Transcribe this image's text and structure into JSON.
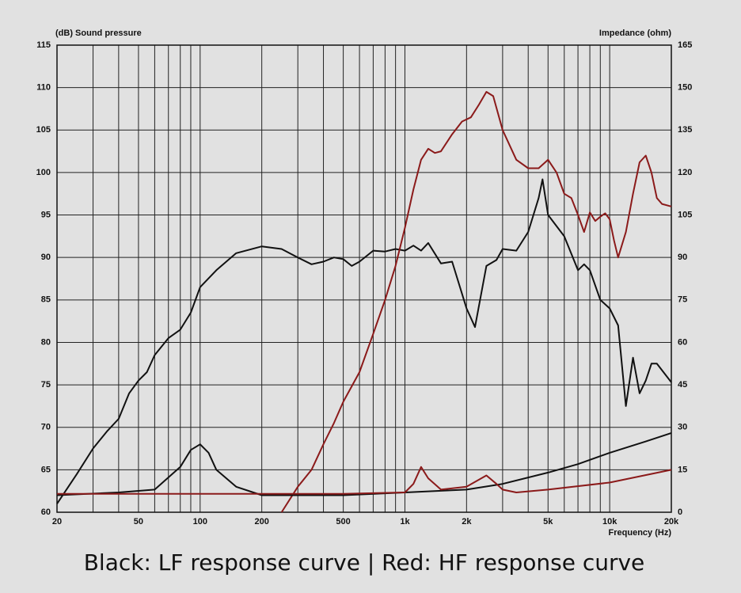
{
  "chart_data": {
    "type": "line",
    "y_label": "(dB) Sound pressure",
    "y2_label": "Impedance  (ohm)",
    "x_label": "Frequency  (Hz)",
    "caption": "Black: LF response curve | Red: HF response curve",
    "xscale": "log",
    "grid": true,
    "xlim": [
      20,
      20000
    ],
    "xticks": [
      20,
      50,
      100,
      200,
      500,
      {
        "value": 1000,
        "label": "1k"
      },
      {
        "value": 2000,
        "label": "2k"
      },
      {
        "value": 5000,
        "label": "5k"
      },
      {
        "value": 10000,
        "label": "10k"
      },
      {
        "value": 20000,
        "label": "20k"
      }
    ],
    "xgrid": [
      20,
      30,
      40,
      50,
      60,
      70,
      80,
      90,
      100,
      200,
      300,
      400,
      500,
      600,
      700,
      800,
      900,
      1000,
      2000,
      3000,
      4000,
      5000,
      6000,
      7000,
      8000,
      9000,
      10000,
      20000
    ],
    "ylim": [
      60,
      115
    ],
    "yticks": [
      60,
      65,
      70,
      75,
      80,
      85,
      90,
      95,
      100,
      105,
      110,
      115
    ],
    "y2lim": [
      0,
      165
    ],
    "y2ticks": [
      0,
      15,
      30,
      45,
      60,
      75,
      90,
      105,
      120,
      135,
      150,
      165
    ],
    "series": [
      {
        "color": "#111111",
        "x": [
          20,
          25,
          30,
          35,
          40,
          45,
          50,
          55,
          60,
          70,
          80,
          90,
          100,
          120,
          150,
          200,
          250,
          300,
          350,
          400,
          450,
          500,
          550,
          600,
          700,
          800,
          900,
          1000,
          1100,
          1200,
          1300,
          1500,
          1700,
          2000,
          2200,
          2500,
          2800,
          3000,
          3500,
          4000,
          4500,
          4700,
          5000,
          6000,
          7000,
          7500,
          8000,
          9000,
          10000,
          11000,
          12000,
          13000,
          14000,
          15000,
          16000,
          17000,
          20000
        ],
        "values": [
          61,
          64.5,
          67.5,
          69.5,
          71,
          74,
          75.5,
          76.5,
          78.5,
          80.5,
          81.5,
          83.5,
          86.5,
          88.5,
          90.5,
          91.3,
          91,
          90,
          89.2,
          89.5,
          90,
          89.8,
          89,
          89.5,
          90.8,
          90.7,
          91,
          90.8,
          91.4,
          90.8,
          91.7,
          89.3,
          89.5,
          84,
          81.8,
          89,
          89.7,
          91,
          90.8,
          93,
          97,
          99.2,
          95,
          92.5,
          88.5,
          89.2,
          88.5,
          85,
          84,
          82,
          72.5,
          78.2,
          74,
          75.5,
          77.5,
          77.5,
          75.3
        ]
      },
      {
        "color": "#8b1a1a",
        "x": [
          250,
          300,
          350,
          400,
          450,
          500,
          600,
          700,
          800,
          900,
          1000,
          1100,
          1200,
          1300,
          1400,
          1500,
          1700,
          1900,
          2100,
          2300,
          2500,
          2700,
          3000,
          3500,
          4000,
          4500,
          5000,
          5500,
          6000,
          6500,
          7000,
          7500,
          8000,
          8500,
          9000,
          9500,
          10000,
          10500,
          11000,
          12000,
          13000,
          14000,
          15000,
          16000,
          17000,
          18000,
          20000
        ],
        "values": [
          60,
          63,
          65,
          68,
          70.5,
          73,
          76.5,
          81,
          85,
          89,
          93.5,
          98,
          101.5,
          102.8,
          102.3,
          102.5,
          104.5,
          106,
          106.5,
          108,
          109.5,
          109,
          105,
          101.5,
          100.5,
          100.5,
          101.5,
          100,
          97.5,
          97,
          95,
          93,
          95.3,
          94.3,
          94.8,
          95.2,
          94.5,
          92,
          90,
          93,
          97.5,
          101.2,
          102,
          100,
          97,
          96.3,
          96
        ]
      },
      {
        "color": "#111111",
        "axis": "y2",
        "x": [
          20,
          40,
          60,
          80,
          90,
          100,
          110,
          120,
          150,
          200,
          300,
          500,
          1000,
          2000,
          3000,
          5000,
          7000,
          10000,
          15000,
          20000
        ],
        "values": [
          6,
          7,
          8,
          16,
          22,
          24,
          21,
          15,
          9,
          6,
          6,
          6,
          7,
          8,
          10,
          14,
          17,
          21,
          25,
          28
        ]
      },
      {
        "color": "#8b1a1a",
        "axis": "y2",
        "x": [
          20,
          500,
          1000,
          1100,
          1200,
          1300,
          1500,
          2000,
          2500,
          2800,
          3000,
          3500,
          5000,
          10000,
          20000
        ],
        "values": [
          6.5,
          6.5,
          7,
          10,
          16,
          12,
          8,
          9,
          13,
          10,
          8,
          7,
          8,
          10.5,
          15
        ]
      }
    ]
  }
}
